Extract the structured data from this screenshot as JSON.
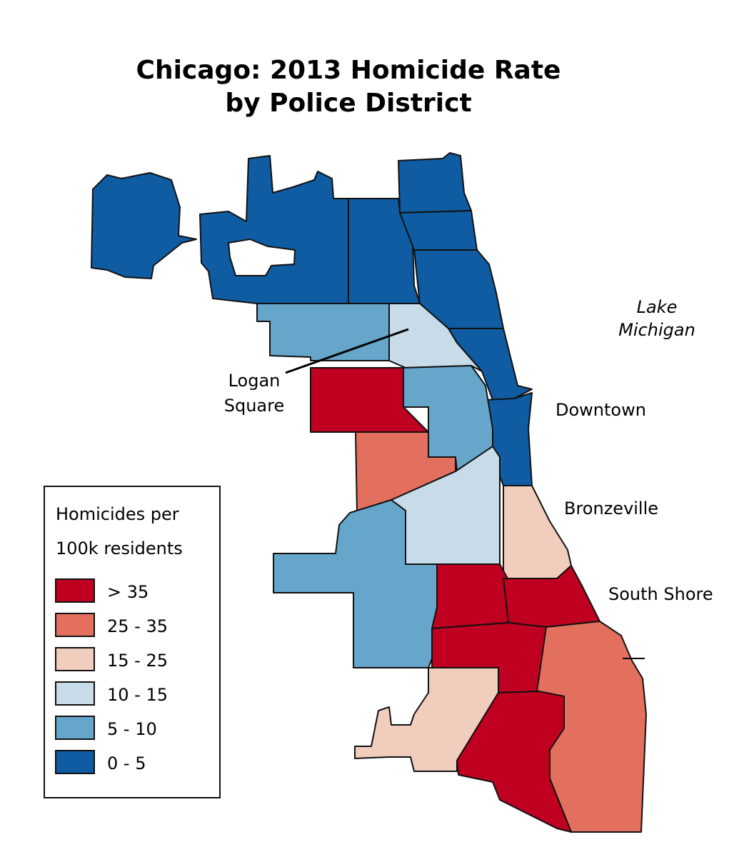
{
  "title": [
    "Chicago: 2013 Homicide Rate",
    "by Police District"
  ],
  "legend": {
    "title": [
      "Homicides per",
      "100k residents"
    ],
    "items": [
      {
        "label": "> 35",
        "color": "#bf0020"
      },
      {
        "label": "25 - 35",
        "color": "#e3705f"
      },
      {
        "label": "15 - 25",
        "color": "#f1cdbd"
      },
      {
        "label": "10 - 15",
        "color": "#c7dbe8"
      },
      {
        "label": "5 - 10",
        "color": "#66a6cb"
      },
      {
        "label": "0 - 5",
        "color": "#0f5ca2"
      }
    ]
  },
  "places": {
    "lake": [
      "Lake",
      "Michigan"
    ],
    "logan_square": [
      "Logan",
      "Square"
    ],
    "downtown": "Downtown",
    "bronzeville": "Bronzeville",
    "south_shore": "South Shore"
  }
}
